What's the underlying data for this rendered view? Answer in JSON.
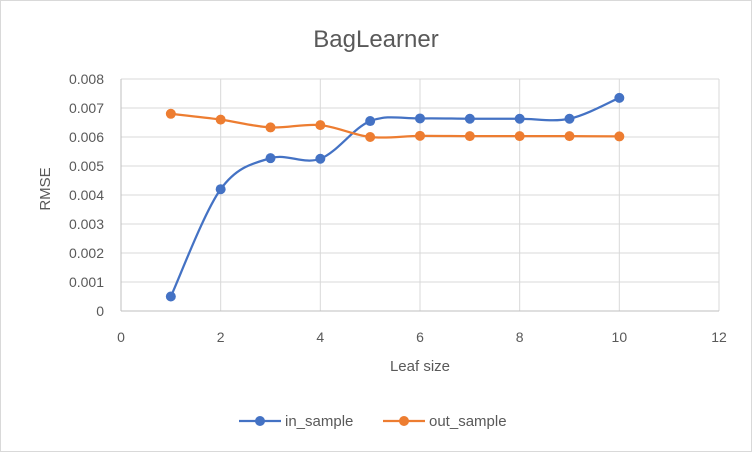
{
  "chart_data": {
    "type": "line",
    "title": "BagLearner",
    "xlabel": "Leaf size",
    "ylabel": "RMSE",
    "xlim": [
      0,
      12
    ],
    "ylim": [
      0,
      0.008
    ],
    "x_ticks": [
      "0",
      "2",
      "4",
      "6",
      "8",
      "10",
      "12"
    ],
    "y_ticks": [
      "0",
      "0.001",
      "0.002",
      "0.003",
      "0.004",
      "0.005",
      "0.006",
      "0.007",
      "0.008"
    ],
    "grid": true,
    "legend_position": "bottom",
    "x": [
      1,
      2,
      3,
      4,
      5,
      6,
      7,
      8,
      9,
      10
    ],
    "series": [
      {
        "name": "in_sample",
        "color": "#4472c4",
        "values": [
          0.0005,
          0.0042,
          0.00527,
          0.00525,
          0.00655,
          0.00664,
          0.00663,
          0.00663,
          0.00663,
          0.00735
        ]
      },
      {
        "name": "out_sample",
        "color": "#ed7d31",
        "values": [
          0.0068,
          0.0066,
          0.00633,
          0.00641,
          0.006,
          0.00604,
          0.00603,
          0.00603,
          0.00603,
          0.00602
        ]
      }
    ]
  }
}
